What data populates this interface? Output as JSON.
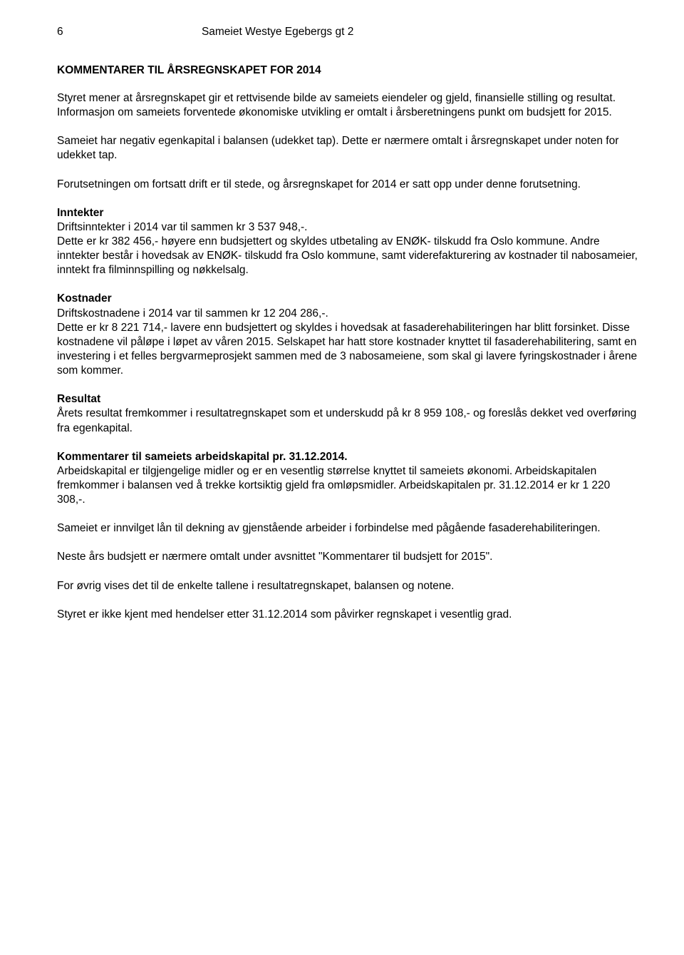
{
  "header": {
    "page_number": "6",
    "doc_title": "Sameiet Westye Egebergs gt 2"
  },
  "title": "KOMMENTARER TIL ÅRSREGNSKAPET FOR 2014",
  "intro_p1": "Styret mener at årsregnskapet gir et rettvisende bilde av sameiets eiendeler og gjeld, finansielle stilling og resultat. Informasjon om sameiets forventede økonomiske utvikling er omtalt i årsberetningens punkt om budsjett for 2015.",
  "intro_p2": "Sameiet har negativ egenkapital i balansen (udekket tap). Dette er nærmere omtalt i årsregnskapet under noten for udekket tap.",
  "intro_p3": "Forutsetningen om fortsatt drift er til stede, og årsregnskapet for 2014 er satt opp under denne forutsetning.",
  "inntekter": {
    "heading": "Inntekter",
    "body": "Driftsinntekter i 2014 var til sammen kr 3 537 948,-.\nDette er kr 382 456,- høyere enn budsjettert og skyldes utbetaling av ENØK- tilskudd fra Oslo kommune. Andre inntekter består i hovedsak av ENØK- tilskudd fra Oslo kommune, samt viderefakturering av kostnader til nabosameier, inntekt fra filminnspilling og nøkkelsalg."
  },
  "kostnader": {
    "heading": "Kostnader",
    "body": "Driftskostnadene i 2014 var til sammen kr 12 204 286,-.\nDette er kr 8 221 714,- lavere enn budsjettert og skyldes i hovedsak at fasaderehabiliteringen har blitt forsinket. Disse kostnadene vil påløpe i løpet av våren 2015. Selskapet har hatt store kostnader knyttet til fasaderehabilitering, samt en investering i et felles bergvarmeprosjekt sammen med de 3 nabosameiene, som skal gi lavere fyringskostnader i årene som kommer."
  },
  "resultat": {
    "heading": "Resultat",
    "body": "Årets resultat fremkommer i resultatregnskapet som et underskudd på kr 8 959 108,- og foreslås dekket ved overføring fra egenkapital."
  },
  "arbeidskapital": {
    "heading": "Kommentarer til sameiets arbeidskapital pr. 31.12.2014.",
    "body": "Arbeidskapital er tilgjengelige midler og er en vesentlig størrelse knyttet til sameiets økonomi. Arbeidskapitalen fremkommer i balansen ved å trekke kortsiktig gjeld fra omløpsmidler. Arbeidskapitalen pr. 31.12.2014 er kr 1 220 308,-."
  },
  "p_loan": "Sameiet er innvilget lån til dekning av gjenstående arbeider i forbindelse med pågående fasaderehabiliteringen.",
  "p_budget": "Neste års budsjett er nærmere omtalt under avsnittet \"Kommentarer til budsjett for 2015\".",
  "p_ref": "For øvrig vises det til de enkelte tallene i resultatregnskapet, balansen og notene.",
  "p_events": "Styret er ikke kjent med hendelser etter 31.12.2014 som påvirker regnskapet i vesentlig grad."
}
